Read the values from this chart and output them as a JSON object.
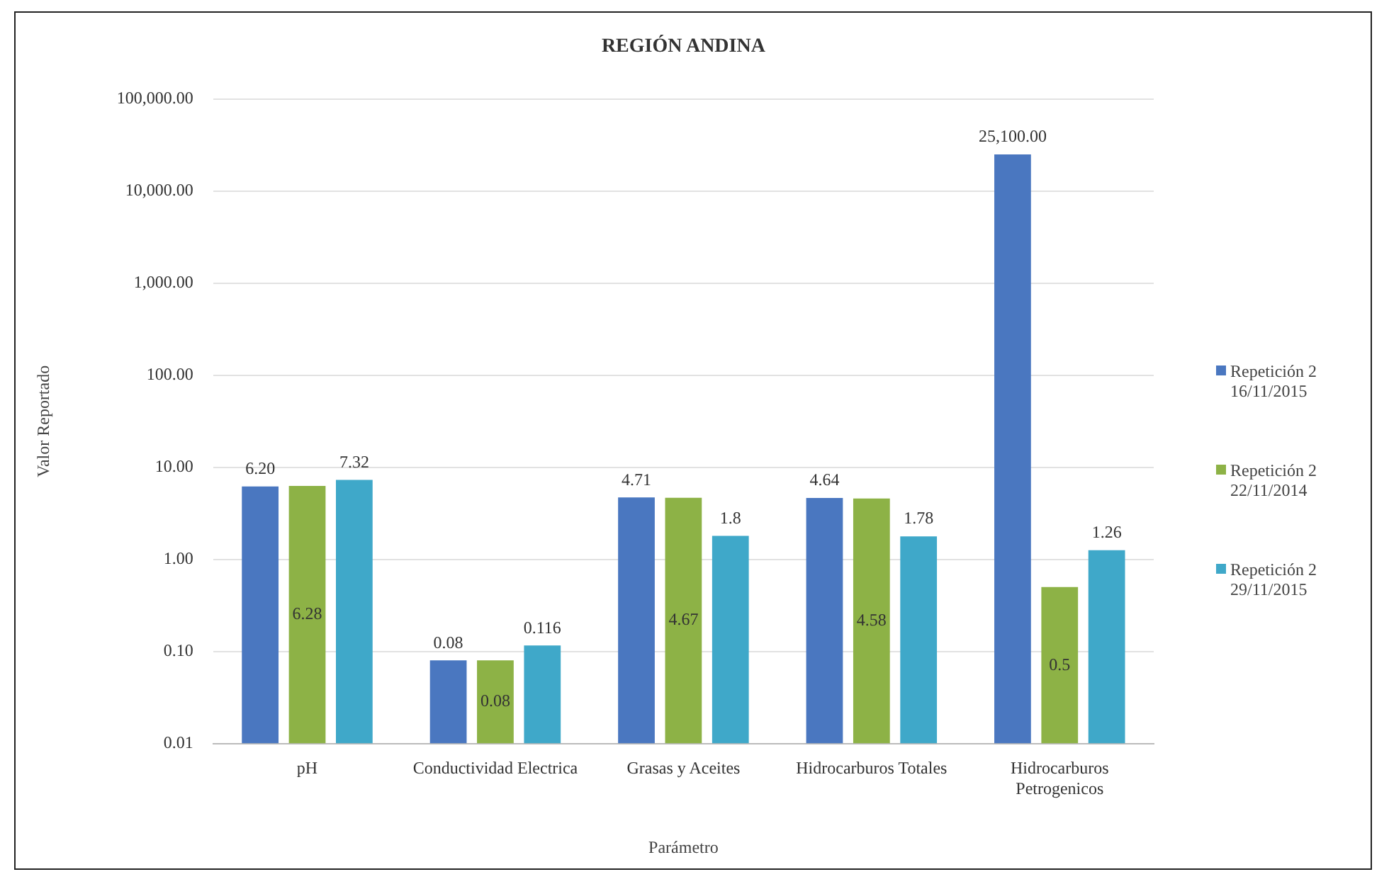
{
  "chart_data": {
    "type": "bar",
    "title": "REGIÓN ANDINA",
    "xlabel": "Parámetro",
    "ylabel": "Valor Reportado",
    "categories": [
      "pH",
      "Conductividad Electrica",
      "Grasas y Aceites",
      "Hidrocarburos Totales",
      "Hidrocarburos\nPetrogenicos"
    ],
    "series": [
      {
        "name": "Repetición 2\n16/11/2015",
        "color": "#4a77c0",
        "values": [
          6.2,
          0.08,
          4.71,
          4.64,
          25100
        ],
        "value_labels": [
          "6.20",
          "0.08",
          "4.71",
          "4.64",
          "25,100.00"
        ]
      },
      {
        "name": "Repetición 2\n22/11/2014",
        "color": "#8db246",
        "values": [
          6.28,
          0.08,
          4.67,
          4.58,
          0.5
        ],
        "value_labels": [
          "6.28",
          "0.08",
          "4.67",
          "4.58",
          "0.5"
        ]
      },
      {
        "name": "Repetición 2\n29/11/2015",
        "color": "#3fa8c9",
        "values": [
          7.32,
          0.116,
          1.8,
          1.78,
          1.26
        ],
        "value_labels": [
          "7.32",
          "0.116",
          "1.8",
          "1.78",
          "1.26"
        ]
      }
    ],
    "log": "y",
    "ylim": [
      0.01,
      100000
    ],
    "yticks": [
      {
        "value": 0.01,
        "label": "0.01"
      },
      {
        "value": 0.1,
        "label": "0.10"
      },
      {
        "value": 1,
        "label": "1.00"
      },
      {
        "value": 10,
        "label": "10.00"
      },
      {
        "value": 100,
        "label": "100.00"
      },
      {
        "value": 1000,
        "label": "1,000.00"
      },
      {
        "value": 10000,
        "label": "10,000.00"
      },
      {
        "value": 100000,
        "label": "100,000.00"
      }
    ],
    "grid": "y",
    "legend": "right"
  }
}
